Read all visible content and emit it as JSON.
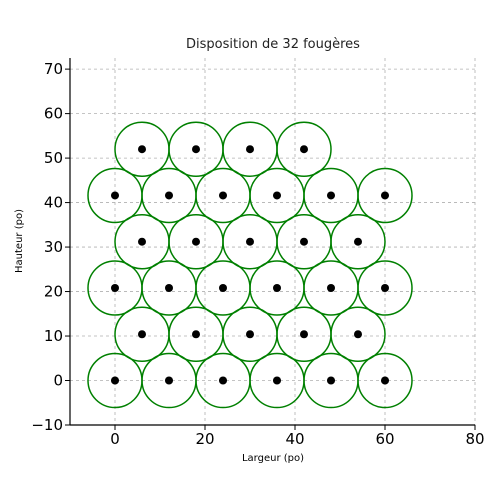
{
  "chart_data": {
    "type": "scatter",
    "title": "Disposition de 32 fougères",
    "xlabel": "Largeur (po)",
    "ylabel": "Hauteur (po)",
    "xlim": [
      -10,
      80
    ],
    "ylim": [
      -10,
      72.5
    ],
    "x_ticks": [
      0,
      20,
      40,
      60,
      80
    ],
    "y_ticks": [
      -10,
      0,
      10,
      20,
      30,
      40,
      50,
      60,
      70
    ],
    "grid": true,
    "circle_radius": 6,
    "colors": {
      "circle": "#008000",
      "point": "#000000",
      "grid": "#b0b0b0"
    },
    "points": [
      {
        "x": 0,
        "y": 0
      },
      {
        "x": 12,
        "y": 0
      },
      {
        "x": 24,
        "y": 0
      },
      {
        "x": 36,
        "y": 0
      },
      {
        "x": 48,
        "y": 0
      },
      {
        "x": 60,
        "y": 0
      },
      {
        "x": 6,
        "y": 10.4
      },
      {
        "x": 18,
        "y": 10.4
      },
      {
        "x": 30,
        "y": 10.4
      },
      {
        "x": 42,
        "y": 10.4
      },
      {
        "x": 54,
        "y": 10.4
      },
      {
        "x": 0,
        "y": 20.8
      },
      {
        "x": 12,
        "y": 20.8
      },
      {
        "x": 24,
        "y": 20.8
      },
      {
        "x": 36,
        "y": 20.8
      },
      {
        "x": 48,
        "y": 20.8
      },
      {
        "x": 60,
        "y": 20.8
      },
      {
        "x": 6,
        "y": 31.2
      },
      {
        "x": 18,
        "y": 31.2
      },
      {
        "x": 30,
        "y": 31.2
      },
      {
        "x": 42,
        "y": 31.2
      },
      {
        "x": 54,
        "y": 31.2
      },
      {
        "x": 0,
        "y": 41.6
      },
      {
        "x": 12,
        "y": 41.6
      },
      {
        "x": 24,
        "y": 41.6
      },
      {
        "x": 36,
        "y": 41.6
      },
      {
        "x": 48,
        "y": 41.6
      },
      {
        "x": 60,
        "y": 41.6
      },
      {
        "x": 6,
        "y": 52
      },
      {
        "x": 18,
        "y": 52
      },
      {
        "x": 30,
        "y": 52
      },
      {
        "x": 42,
        "y": 52
      }
    ]
  }
}
